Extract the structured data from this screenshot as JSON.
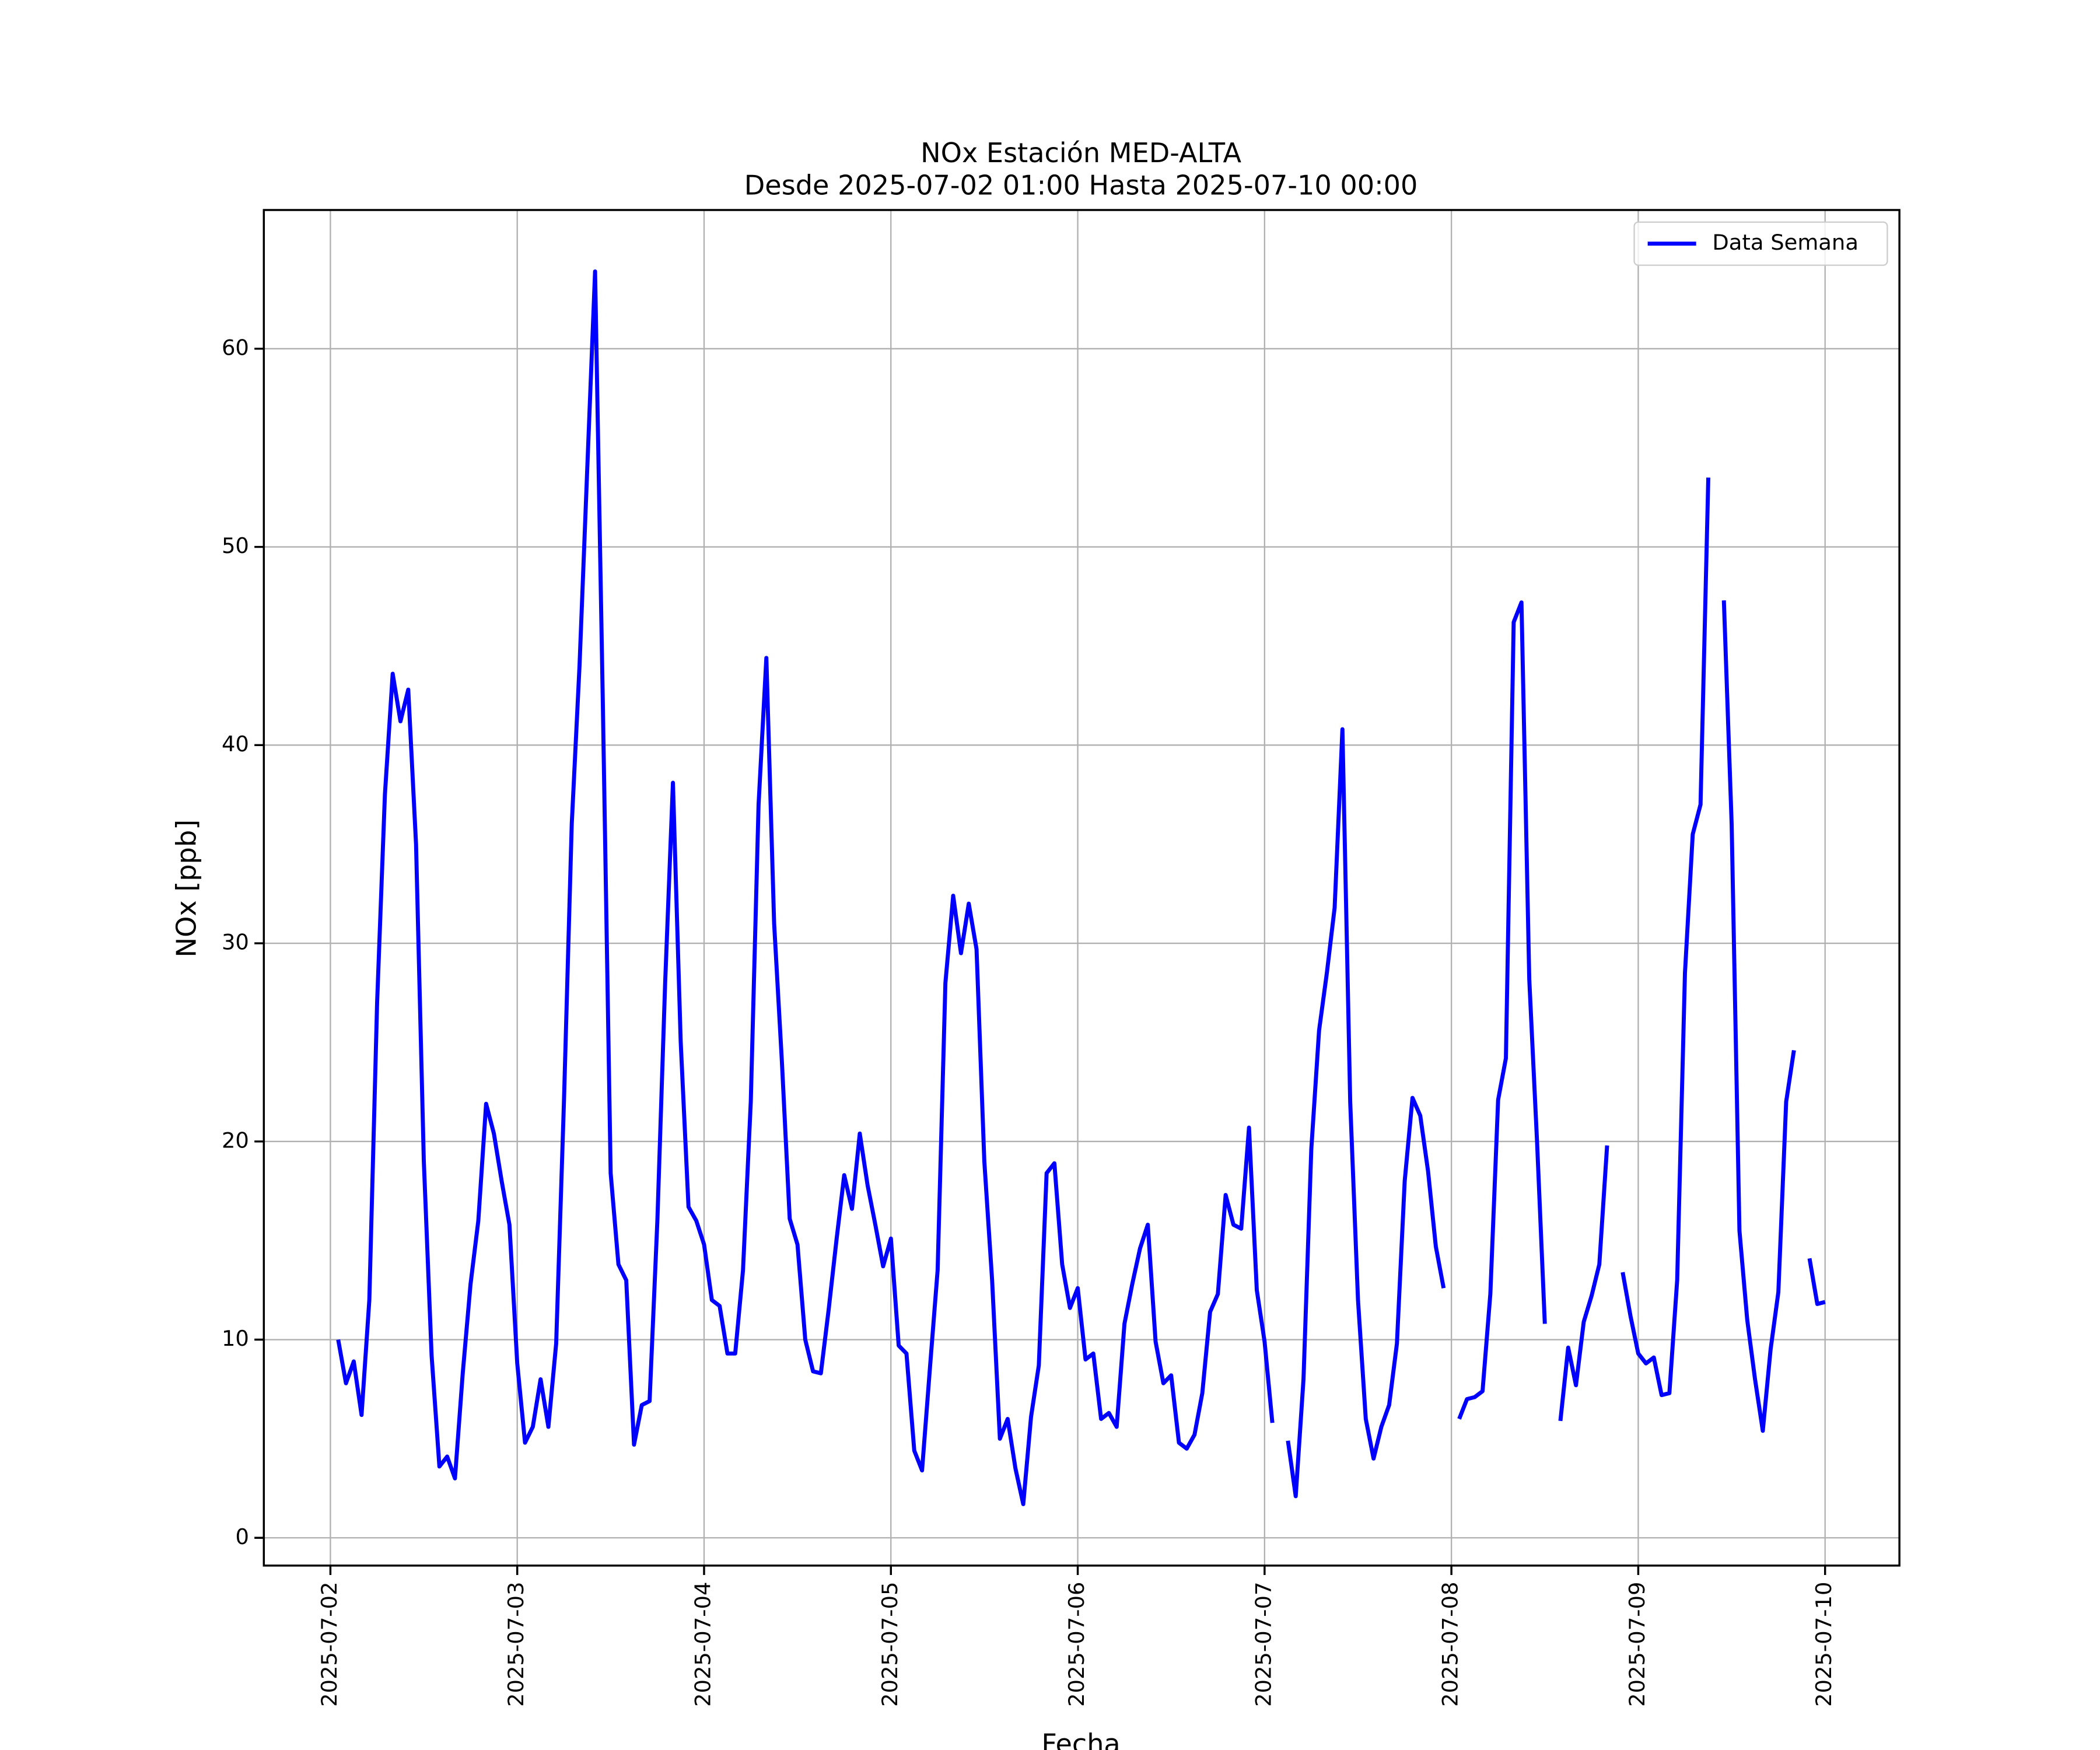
{
  "chart_data": {
    "type": "line",
    "title": "NOx Estación MED-ALTA",
    "subtitle": "Desde 2025-07-02 01:00 Hasta 2025-07-10 00:00",
    "x_label": "Fecha",
    "y_label": "NOx [ppb]",
    "x": [
      "2025-07-02 01:00",
      "2025-07-02 02:00",
      "2025-07-02 03:00",
      "2025-07-02 04:00",
      "2025-07-02 05:00",
      "2025-07-02 06:00",
      "2025-07-02 07:00",
      "2025-07-02 08:00",
      "2025-07-02 09:00",
      "2025-07-02 10:00",
      "2025-07-02 11:00",
      "2025-07-02 12:00",
      "2025-07-02 13:00",
      "2025-07-02 14:00",
      "2025-07-02 15:00",
      "2025-07-02 16:00",
      "2025-07-02 17:00",
      "2025-07-02 18:00",
      "2025-07-02 19:00",
      "2025-07-02 20:00",
      "2025-07-02 21:00",
      "2025-07-02 22:00",
      "2025-07-02 23:00",
      "2025-07-03 00:00",
      "2025-07-03 01:00",
      "2025-07-03 02:00",
      "2025-07-03 03:00",
      "2025-07-03 04:00",
      "2025-07-03 05:00",
      "2025-07-03 06:00",
      "2025-07-03 07:00",
      "2025-07-03 08:00",
      "2025-07-03 09:00",
      "2025-07-03 10:00",
      "2025-07-03 11:00",
      "2025-07-03 12:00",
      "2025-07-03 13:00",
      "2025-07-03 14:00",
      "2025-07-03 15:00",
      "2025-07-03 16:00",
      "2025-07-03 17:00",
      "2025-07-03 18:00",
      "2025-07-03 19:00",
      "2025-07-03 20:00",
      "2025-07-03 21:00",
      "2025-07-03 22:00",
      "2025-07-03 23:00",
      "2025-07-04 00:00",
      "2025-07-04 01:00",
      "2025-07-04 02:00",
      "2025-07-04 03:00",
      "2025-07-04 04:00",
      "2025-07-04 05:00",
      "2025-07-04 06:00",
      "2025-07-04 07:00",
      "2025-07-04 08:00",
      "2025-07-04 09:00",
      "2025-07-04 10:00",
      "2025-07-04 11:00",
      "2025-07-04 12:00",
      "2025-07-04 13:00",
      "2025-07-04 14:00",
      "2025-07-04 15:00",
      "2025-07-04 16:00",
      "2025-07-04 17:00",
      "2025-07-04 18:00",
      "2025-07-04 19:00",
      "2025-07-04 20:00",
      "2025-07-04 21:00",
      "2025-07-04 22:00",
      "2025-07-04 23:00",
      "2025-07-05 00:00",
      "2025-07-05 01:00",
      "2025-07-05 02:00",
      "2025-07-05 03:00",
      "2025-07-05 04:00",
      "2025-07-05 05:00",
      "2025-07-05 06:00",
      "2025-07-05 07:00",
      "2025-07-05 08:00",
      "2025-07-05 09:00",
      "2025-07-05 10:00",
      "2025-07-05 11:00",
      "2025-07-05 12:00",
      "2025-07-05 13:00",
      "2025-07-05 14:00",
      "2025-07-05 15:00",
      "2025-07-05 16:00",
      "2025-07-05 17:00",
      "2025-07-05 18:00",
      "2025-07-05 19:00",
      "2025-07-05 20:00",
      "2025-07-05 21:00",
      "2025-07-05 22:00",
      "2025-07-05 23:00",
      "2025-07-06 00:00",
      "2025-07-06 01:00",
      "2025-07-06 02:00",
      "2025-07-06 03:00",
      "2025-07-06 04:00",
      "2025-07-06 05:00",
      "2025-07-06 06:00",
      "2025-07-06 07:00",
      "2025-07-06 08:00",
      "2025-07-06 09:00",
      "2025-07-06 10:00",
      "2025-07-06 11:00",
      "2025-07-06 12:00",
      "2025-07-06 13:00",
      "2025-07-06 14:00",
      "2025-07-06 15:00",
      "2025-07-06 16:00",
      "2025-07-06 17:00",
      "2025-07-06 18:00",
      "2025-07-06 19:00",
      "2025-07-06 20:00",
      "2025-07-06 21:00",
      "2025-07-06 22:00",
      "2025-07-06 23:00",
      "2025-07-07 00:00",
      "2025-07-07 01:00",
      "2025-07-07 02:00",
      "2025-07-07 03:00",
      "2025-07-07 04:00",
      "2025-07-07 05:00",
      "2025-07-07 06:00",
      "2025-07-07 07:00",
      "2025-07-07 08:00",
      "2025-07-07 09:00",
      "2025-07-07 10:00",
      "2025-07-07 11:00",
      "2025-07-07 12:00",
      "2025-07-07 13:00",
      "2025-07-07 14:00",
      "2025-07-07 15:00",
      "2025-07-07 16:00",
      "2025-07-07 17:00",
      "2025-07-07 18:00",
      "2025-07-07 19:00",
      "2025-07-07 20:00",
      "2025-07-07 21:00",
      "2025-07-07 22:00",
      "2025-07-07 23:00",
      "2025-07-08 00:00",
      "2025-07-08 01:00",
      "2025-07-08 02:00",
      "2025-07-08 03:00",
      "2025-07-08 04:00",
      "2025-07-08 05:00",
      "2025-07-08 06:00",
      "2025-07-08 07:00",
      "2025-07-08 08:00",
      "2025-07-08 09:00",
      "2025-07-08 10:00",
      "2025-07-08 11:00",
      "2025-07-08 12:00",
      "2025-07-08 13:00",
      "2025-07-08 14:00",
      "2025-07-08 15:00",
      "2025-07-08 16:00",
      "2025-07-08 17:00",
      "2025-07-08 18:00",
      "2025-07-08 19:00",
      "2025-07-08 20:00",
      "2025-07-08 21:00",
      "2025-07-08 22:00",
      "2025-07-08 23:00",
      "2025-07-09 00:00",
      "2025-07-09 01:00",
      "2025-07-09 02:00",
      "2025-07-09 03:00",
      "2025-07-09 04:00",
      "2025-07-09 05:00",
      "2025-07-09 06:00",
      "2025-07-09 07:00",
      "2025-07-09 08:00",
      "2025-07-09 09:00",
      "2025-07-09 10:00",
      "2025-07-09 11:00",
      "2025-07-09 12:00",
      "2025-07-09 13:00",
      "2025-07-09 14:00",
      "2025-07-09 15:00",
      "2025-07-09 16:00",
      "2025-07-09 17:00",
      "2025-07-09 18:00",
      "2025-07-09 19:00",
      "2025-07-09 20:00",
      "2025-07-09 21:00",
      "2025-07-09 22:00",
      "2025-07-09 23:00",
      "2025-07-10 00:00"
    ],
    "series": [
      {
        "name": "Data Semana",
        "color": "#0000ff",
        "values": [
          10.0,
          7.8,
          8.9,
          6.2,
          12,
          27,
          37.5,
          43.6,
          41.2,
          42.8,
          35,
          19,
          9.2,
          3.6,
          4.1,
          3.0,
          8.3,
          12.8,
          16,
          21.9,
          20.4,
          18,
          15.8,
          8.8,
          4.8,
          5.6,
          8.0,
          5.6,
          9.8,
          22,
          36,
          44,
          54,
          63.9,
          42,
          18.4,
          13.8,
          13,
          4.7,
          6.7,
          6.9,
          16,
          28,
          38.1,
          25,
          16.7,
          16,
          14.8,
          12,
          11.7,
          9.3,
          9.3,
          13.5,
          22,
          37,
          44.4,
          31,
          24,
          16.1,
          14.8,
          10,
          8.4,
          8.3,
          11.5,
          15,
          18.3,
          16.6,
          20.4,
          17.8,
          15.8,
          13.7,
          15.1,
          9.7,
          9.3,
          4.4,
          3.4,
          8.5,
          13.5,
          28,
          32.4,
          29.5,
          32,
          29.7,
          19,
          13,
          5.0,
          6.0,
          3.5,
          1.7,
          6.1,
          8.7,
          18.4,
          18.9,
          13.8,
          11.6,
          12.6,
          9.0,
          9.3,
          6.0,
          6.3,
          5.6,
          10.8,
          12.8,
          14.6,
          15.8,
          9.9,
          7.8,
          8.2,
          4.8,
          4.5,
          5.2,
          7.3,
          11.4,
          12.3,
          17.3,
          15.8,
          15.6,
          20.7,
          12.5,
          9.9,
          5.8,
          null,
          4.9,
          2.1,
          8,
          19.6,
          25.6,
          28.5,
          31.8,
          40.8,
          22,
          12,
          6.0,
          4.0,
          5.6,
          6.7,
          9.8,
          18,
          22.2,
          21.3,
          18.5,
          14.7,
          12.6,
          null,
          6.0,
          7.0,
          7.1,
          7.4,
          12.3,
          22.1,
          24.2,
          46.2,
          47.2,
          28.2,
          20,
          10.8,
          null,
          5.9,
          9.6,
          7.7,
          10.9,
          12.2,
          13.8,
          19.8,
          null,
          13.4,
          11.2,
          9.3,
          8.8,
          9.1,
          7.2,
          7.3,
          13,
          28.5,
          35.5,
          37,
          53.5,
          null,
          47.3,
          36,
          15.5,
          11,
          8,
          5.4,
          9.5,
          12.4,
          22,
          24.6,
          null,
          14.1,
          11.8,
          11.9
        ]
      }
    ],
    "xlim": [
      "2025-07-01 15:27",
      "2025-07-10 09:33"
    ],
    "xticks": [
      "2025-07-02",
      "2025-07-03",
      "2025-07-04",
      "2025-07-05",
      "2025-07-06",
      "2025-07-07",
      "2025-07-08",
      "2025-07-09",
      "2025-07-10"
    ],
    "ylim": [
      -1.4,
      67.0
    ],
    "yticks": [
      0,
      10,
      20,
      30,
      40,
      50,
      60
    ],
    "grid": true,
    "legend": "upper right"
  }
}
